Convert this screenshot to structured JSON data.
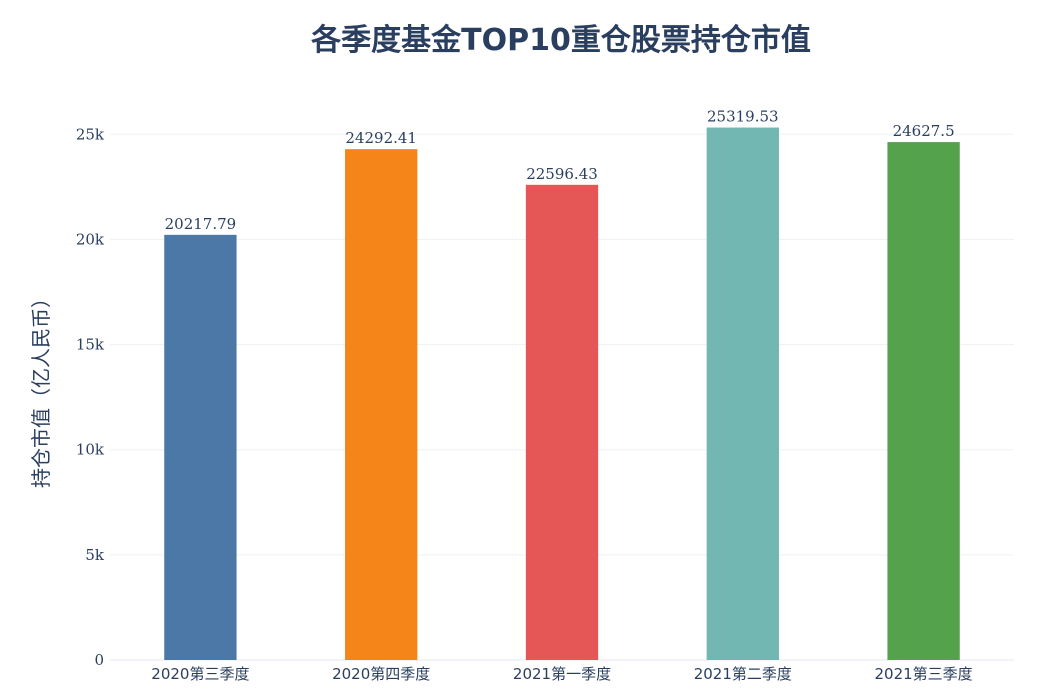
{
  "chart_data": {
    "type": "bar",
    "title": "各季度基金TOP10重仓股票持仓市值",
    "xlabel": "",
    "ylabel": "持仓市值（亿人民币）",
    "categories": [
      "2020第三季度",
      "2020第四季度",
      "2021第一季度",
      "2021第二季度",
      "2021第三季度"
    ],
    "values": [
      20217.79,
      24292.41,
      22596.43,
      25319.53,
      24627.5
    ],
    "value_labels": [
      "20217.79",
      "24292.41",
      "22596.43",
      "25319.53",
      "24627.5"
    ],
    "colors": [
      "#4c78a8",
      "#f58518",
      "#e45756",
      "#72b7b2",
      "#54a24b"
    ],
    "ylim": [
      0,
      26630
    ],
    "y_ticks": [
      0,
      5000,
      10000,
      15000,
      20000,
      25000
    ],
    "y_tick_labels": [
      "0",
      "5k",
      "10k",
      "15k",
      "20k",
      "25k"
    ],
    "grid": true,
    "legend": "none"
  }
}
